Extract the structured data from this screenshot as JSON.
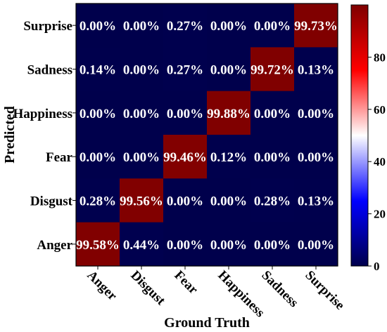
{
  "chart_data": {
    "type": "heatmap",
    "title": "",
    "xlabel": "Ground Truth",
    "ylabel": "Predicted",
    "x_categories": [
      "Anger",
      "Disgust",
      "Fear",
      "Happiness",
      "Sadness",
      "Surprise"
    ],
    "y_categories": [
      "Surprise",
      "Sadness",
      "Happiness",
      "Fear",
      "Disgust",
      "Anger"
    ],
    "cells": [
      [
        "0.00%",
        "0.00%",
        "0.27%",
        "0.00%",
        "0.00%",
        "99.73%"
      ],
      [
        "0.14%",
        "0.00%",
        "0.27%",
        "0.00%",
        "99.72%",
        "0.13%"
      ],
      [
        "0.00%",
        "0.00%",
        "0.00%",
        "99.88%",
        "0.00%",
        "0.00%"
      ],
      [
        "0.00%",
        "0.00%",
        "99.46%",
        "0.12%",
        "0.00%",
        "0.00%"
      ],
      [
        "0.28%",
        "99.56%",
        "0.00%",
        "0.00%",
        "0.28%",
        "0.13%"
      ],
      [
        "99.58%",
        "0.44%",
        "0.00%",
        "0.00%",
        "0.00%",
        "0.00%"
      ]
    ],
    "values": [
      [
        0.0,
        0.0,
        0.27,
        0.0,
        0.0,
        99.73
      ],
      [
        0.14,
        0.0,
        0.27,
        0.0,
        99.72,
        0.13
      ],
      [
        0.0,
        0.0,
        0.0,
        99.88,
        0.0,
        0.0
      ],
      [
        0.0,
        0.0,
        99.46,
        0.12,
        0.0,
        0.0
      ],
      [
        0.28,
        99.56,
        0.0,
        0.0,
        0.28,
        0.13
      ],
      [
        99.58,
        0.44,
        0.0,
        0.0,
        0.0,
        0.0
      ]
    ],
    "colorscale": "seismic",
    "colors": {
      "low": "#00004c",
      "mid": "#ffffff",
      "high": "#7f0000"
    },
    "vmin": 0,
    "vmax": 100,
    "colorbar_ticks": [
      0,
      20,
      40,
      60,
      80
    ],
    "colorbar_tick_labels": [
      "0",
      "20",
      "40",
      "60",
      "80"
    ]
  }
}
